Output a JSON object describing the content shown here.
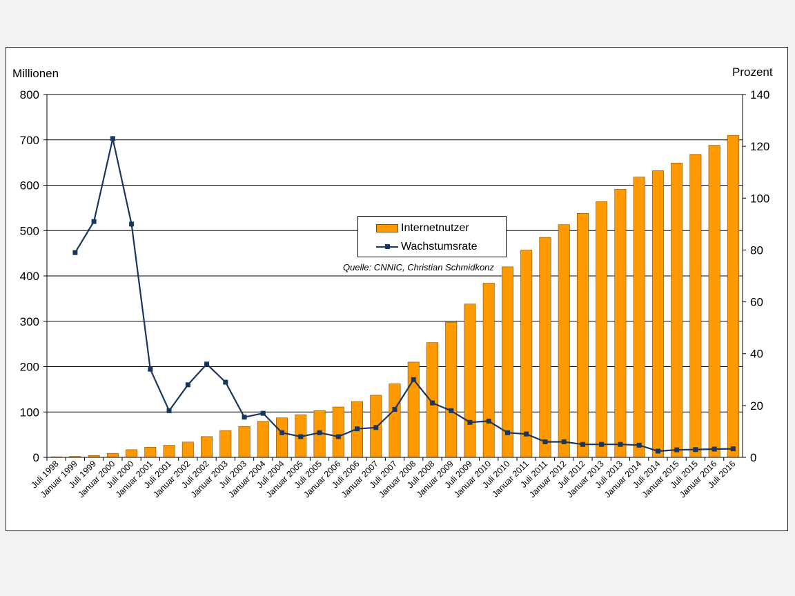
{
  "chart_data": {
    "type": "bar+line",
    "left_unit": "Millionen",
    "right_unit": "Prozent",
    "source_note": "Quelle: CNNIC, Christian Schmidkonz",
    "categories": [
      "Juli 1998",
      "Januar 1999",
      "Juli 1999",
      "Januar 2000",
      "Juli 2000",
      "Januar 2001",
      "Juli 2001",
      "Januar 2002",
      "Juli 2002",
      "Januar 2003",
      "Juli 2003",
      "Januar 2004",
      "Juli 2004",
      "Januar 2005",
      "Juli 2005",
      "Januar 2006",
      "Juli 2006",
      "Januar 2007",
      "Juli 2007",
      "Januar 2008",
      "Juli 2008",
      "Januar 2009",
      "Juli 2009",
      "Januar 2010",
      "Juli 2010",
      "Januar 2011",
      "Juli 2011",
      "Januar 2012",
      "Juli 2012",
      "Januar 2013",
      "Juli 2013",
      "Januar 2014",
      "Juli 2014",
      "Januar 2015",
      "Juli 2015",
      "Januar 2016",
      "Juli 2016"
    ],
    "series": [
      {
        "name": "Internetnutzer",
        "kind": "bar",
        "axis": "left",
        "color": "#FF9900",
        "values": [
          1.2,
          2.1,
          4,
          8.9,
          16.9,
          22.5,
          26.5,
          33.7,
          45.8,
          59.1,
          68,
          79.5,
          87,
          94,
          103,
          111,
          123,
          137,
          162,
          210,
          253,
          298,
          338,
          384,
          420,
          457,
          485,
          513,
          538,
          564,
          591,
          618,
          632,
          649,
          668,
          688,
          710
        ]
      },
      {
        "name": "Wachstumsrate",
        "kind": "line",
        "axis": "right",
        "color": "#17375E",
        "values": [
          null,
          79,
          91,
          123,
          90,
          34,
          18,
          28,
          36,
          29,
          15.5,
          17,
          9.5,
          8,
          9.5,
          8,
          11,
          11.5,
          18.5,
          30,
          21,
          18,
          13.5,
          14,
          9.5,
          9,
          6,
          6,
          5,
          5,
          5,
          4.7,
          2.4,
          2.9,
          3,
          3.2,
          3.3
        ]
      }
    ],
    "ylim_left": [
      0,
      800
    ],
    "yticks_left": [
      0,
      100,
      200,
      300,
      400,
      500,
      600,
      700,
      800
    ],
    "ylim_right": [
      0,
      140
    ],
    "yticks_right": [
      0,
      20,
      40,
      60,
      80,
      100,
      120,
      140
    ],
    "grid": true,
    "legend_position": "top-center"
  }
}
